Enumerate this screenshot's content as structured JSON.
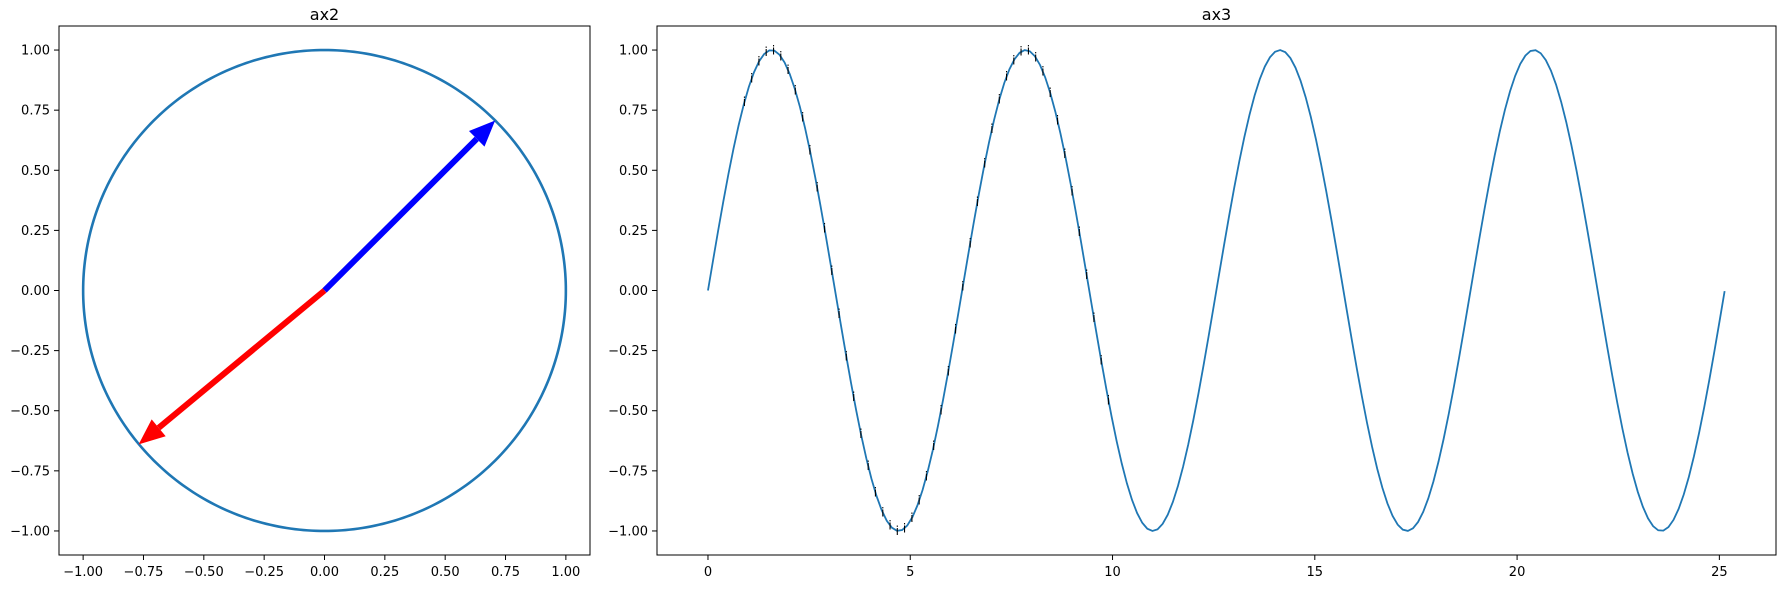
{
  "chart_data": [
    {
      "type": "line",
      "title": "ax2",
      "xlim": [
        -1.1,
        1.1
      ],
      "ylim": [
        -1.1,
        1.1
      ],
      "xticks": [
        "−1.00",
        "−0.75",
        "−0.50",
        "−0.25",
        "0.00",
        "0.25",
        "0.50",
        "0.75",
        "1.00"
      ],
      "yticks": [
        "−1.00",
        "−0.75",
        "−0.50",
        "−0.25",
        "0.00",
        "0.25",
        "0.50",
        "0.75",
        "1.00"
      ],
      "grid": false,
      "series": [
        {
          "shape": "unit-circle",
          "center": [
            0,
            0
          ],
          "radius": 1.0,
          "color": "#1f77b4"
        }
      ],
      "arrows": [
        {
          "from": [
            0,
            0
          ],
          "to": [
            0.707,
            0.707
          ],
          "color": "#0000ff"
        },
        {
          "from": [
            0,
            0
          ],
          "to": [
            -0.77,
            -0.64
          ],
          "color": "#ff0000"
        }
      ]
    },
    {
      "type": "line",
      "title": "ax3",
      "xlim": [
        -1.26,
        26.4
      ],
      "ylim": [
        -1.1,
        1.1
      ],
      "xticks": [
        "0",
        "5",
        "10",
        "15",
        "20",
        "25"
      ],
      "yticks": [
        "−1.00",
        "−0.75",
        "−0.50",
        "−0.25",
        "0.00",
        "0.25",
        "0.50",
        "0.75",
        "1.00"
      ],
      "grid": false,
      "series": [
        {
          "function": "sin(x)",
          "x_range": [
            0,
            25.13
          ],
          "points": 200,
          "color": "#1f77b4"
        }
      ],
      "annotations": {
        "text": "i",
        "x_values": [
          0.9,
          1.08,
          1.26,
          1.44,
          1.62,
          1.8,
          1.98,
          2.16,
          2.34,
          2.52,
          2.7,
          2.88,
          3.06,
          3.24,
          3.42,
          3.6,
          3.78,
          3.96,
          4.14,
          4.32,
          4.5,
          4.68,
          4.86,
          5.04,
          5.22,
          5.4,
          5.58,
          5.76,
          5.94,
          6.12,
          6.3,
          6.48,
          6.66,
          6.84,
          7.02,
          7.2,
          7.38,
          7.56,
          7.74,
          7.92,
          8.1,
          8.28,
          8.46,
          8.64,
          8.82,
          9.0,
          9.18,
          9.36,
          9.54,
          9.72,
          9.9
        ]
      }
    }
  ]
}
